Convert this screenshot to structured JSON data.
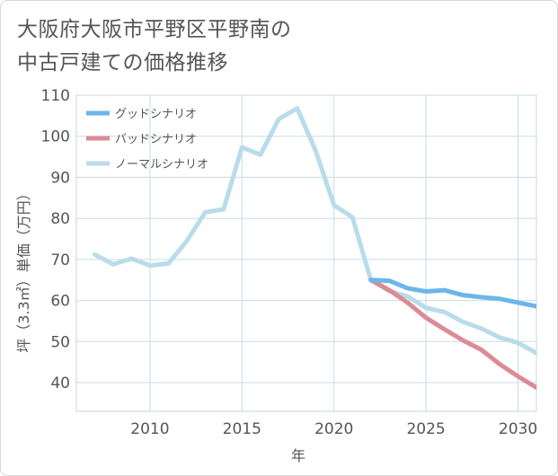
{
  "title_lines": [
    "大阪府大阪市平野区平野南の",
    "中古戸建ての価格推移"
  ],
  "chart_data": {
    "type": "line",
    "title": "大阪府大阪市平野区平野南の中古戸建ての価格推移",
    "xlabel": "年",
    "ylabel": "坪（3.3㎡）単価（万円）",
    "xlim": [
      2006,
      2031
    ],
    "ylim": [
      33,
      110
    ],
    "x_ticks": [
      2010,
      2015,
      2020,
      2025,
      2030
    ],
    "y_ticks": [
      40,
      50,
      60,
      70,
      80,
      90,
      100,
      110
    ],
    "grid": true,
    "legend_position": "top-left",
    "series": [
      {
        "name": "グッドシナリオ",
        "color": "#6cb6ea",
        "x": [
          2022,
          2023,
          2024,
          2025,
          2026,
          2027,
          2028,
          2029,
          2030,
          2031
        ],
        "values": [
          65.0,
          64.8,
          63.0,
          62.2,
          62.5,
          61.3,
          60.8,
          60.4,
          59.5,
          58.6
        ]
      },
      {
        "name": "バッドシナリオ",
        "color": "#dc8a96",
        "x": [
          2022,
          2023,
          2024,
          2025,
          2026,
          2027,
          2028,
          2029,
          2030,
          2031
        ],
        "values": [
          65.0,
          62.5,
          59.5,
          55.8,
          53.0,
          50.3,
          48.0,
          44.5,
          41.5,
          38.8
        ]
      },
      {
        "name": "ノーマルシナリオ",
        "color": "#b9dcea",
        "x": [
          2007,
          2008,
          2009,
          2010,
          2011,
          2012,
          2013,
          2014,
          2015,
          2016,
          2017,
          2018,
          2019,
          2020,
          2021,
          2022,
          2023,
          2024,
          2025,
          2026,
          2027,
          2028,
          2029,
          2030,
          2031
        ],
        "values": [
          71.2,
          68.8,
          70.2,
          68.5,
          69.0,
          74.5,
          81.5,
          82.2,
          97.3,
          95.5,
          104.2,
          106.8,
          96.5,
          83.2,
          80.3,
          65.0,
          62.3,
          61.0,
          58.2,
          57.2,
          54.8,
          53.2,
          51.0,
          49.7,
          47.2
        ]
      }
    ]
  }
}
